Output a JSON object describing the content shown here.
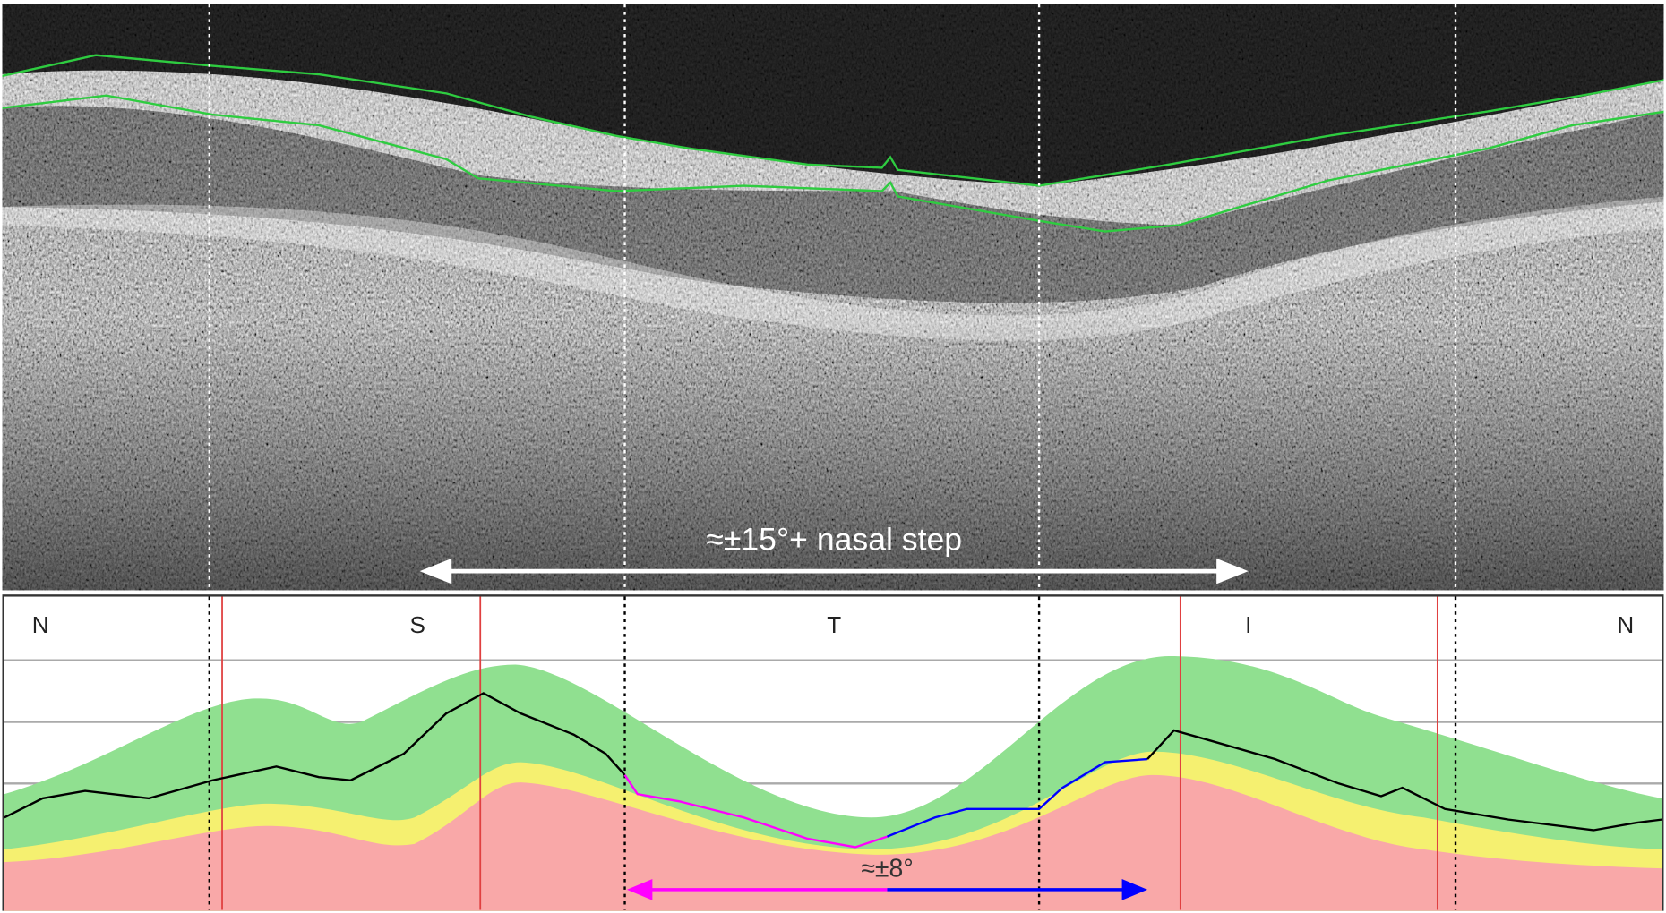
{
  "scan": {
    "annotation": "≈±15°+ nasal step"
  },
  "plot": {
    "sectors": [
      "N",
      "S",
      "T",
      "I",
      "N"
    ],
    "annotation": "≈±8°"
  }
}
